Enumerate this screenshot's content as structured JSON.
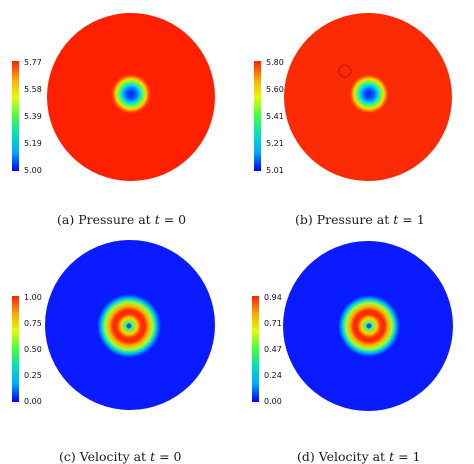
{
  "figure": {
    "panels": [
      {
        "id": "a",
        "caption": {
          "tag": "(a)",
          "text": "Pressure at",
          "var": "t",
          "eq": "= 0"
        },
        "colorbar_ticks": [
          "5.77",
          "5.58",
          "5.39",
          "5.19",
          "5.00"
        ],
        "field": "pressure",
        "field_range": [
          5.0,
          5.77
        ]
      },
      {
        "id": "b",
        "caption": {
          "tag": "(b)",
          "text": "Pressure at",
          "var": "t",
          "eq": "= 1"
        },
        "colorbar_ticks": [
          "5.80",
          "5.60",
          "5.41",
          "5.21",
          "5.01"
        ],
        "field": "pressure",
        "field_range": [
          5.01,
          5.8
        ]
      },
      {
        "id": "c",
        "caption": {
          "tag": "(c)",
          "text": "Velocity at",
          "var": "t",
          "eq": "= 0"
        },
        "colorbar_ticks": [
          "1.00",
          "0.75",
          "0.50",
          "0.25",
          "0.00"
        ],
        "field": "velocity",
        "field_range": [
          0.0,
          1.0
        ]
      },
      {
        "id": "d",
        "caption": {
          "tag": "(d)",
          "text": "Velocity at",
          "var": "t",
          "eq": "= 1"
        },
        "colorbar_ticks": [
          "0.94",
          "0.71",
          "0.47",
          "0.24",
          "0.00"
        ],
        "field": "velocity",
        "field_range": [
          0.0,
          0.94
        ]
      }
    ],
    "colormap": [
      "#0000ff",
      "#00aaff",
      "#00e0c0",
      "#40ff40",
      "#e0ff00",
      "#ffaa00",
      "#ff2000"
    ]
  }
}
